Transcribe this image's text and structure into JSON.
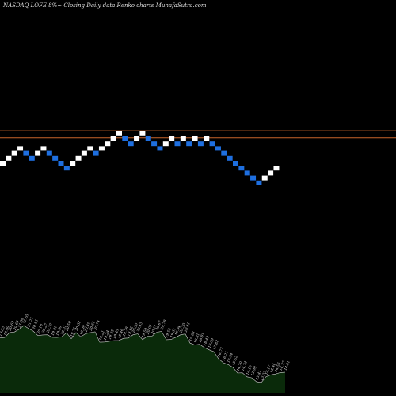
{
  "header": {
    "title": "NASDAQ LOFE 8%~  Closing Daily data  Renko  charts MunafaSutra.com"
  },
  "colors": {
    "background": "#000000",
    "up_brick": "#ffffff",
    "down_brick": "#1e6fe0",
    "resistance_line": "#c8642a",
    "volume_fill": "#0a2a0a",
    "volume_stroke": "#cfcfcf"
  },
  "chart_data": [
    {
      "type": "renko",
      "title": "NASDAQ LOFE 8%~  Closing Daily data  Renko  charts MunafaSutra.com",
      "bricks": [
        {
          "dir": "up",
          "level": 0
        },
        {
          "dir": "up",
          "level": 1
        },
        {
          "dir": "up",
          "level": 2
        },
        {
          "dir": "up",
          "level": 3
        },
        {
          "dir": "down",
          "level": 2
        },
        {
          "dir": "down",
          "level": 1
        },
        {
          "dir": "up",
          "level": 2
        },
        {
          "dir": "up",
          "level": 3
        },
        {
          "dir": "down",
          "level": 2
        },
        {
          "dir": "down",
          "level": 1
        },
        {
          "dir": "down",
          "level": 0
        },
        {
          "dir": "down",
          "level": -1
        },
        {
          "dir": "up",
          "level": 0
        },
        {
          "dir": "up",
          "level": 1
        },
        {
          "dir": "up",
          "level": 2
        },
        {
          "dir": "up",
          "level": 3
        },
        {
          "dir": "down",
          "level": 2
        },
        {
          "dir": "up",
          "level": 3
        },
        {
          "dir": "up",
          "level": 4
        },
        {
          "dir": "up",
          "level": 5
        },
        {
          "dir": "up",
          "level": 6
        },
        {
          "dir": "down",
          "level": 5
        },
        {
          "dir": "down",
          "level": 4
        },
        {
          "dir": "up",
          "level": 5
        },
        {
          "dir": "up",
          "level": 6
        },
        {
          "dir": "down",
          "level": 5
        },
        {
          "dir": "down",
          "level": 4
        },
        {
          "dir": "down",
          "level": 3
        },
        {
          "dir": "up",
          "level": 4
        },
        {
          "dir": "up",
          "level": 5
        },
        {
          "dir": "down",
          "level": 4
        },
        {
          "dir": "up",
          "level": 5
        },
        {
          "dir": "down",
          "level": 4
        },
        {
          "dir": "up",
          "level": 5
        },
        {
          "dir": "down",
          "level": 4
        },
        {
          "dir": "up",
          "level": 5
        },
        {
          "dir": "down",
          "level": 4
        },
        {
          "dir": "down",
          "level": 3
        },
        {
          "dir": "down",
          "level": 2
        },
        {
          "dir": "down",
          "level": 1
        },
        {
          "dir": "down",
          "level": 0
        },
        {
          "dir": "down",
          "level": -1
        },
        {
          "dir": "down",
          "level": -2
        },
        {
          "dir": "down",
          "level": -3
        },
        {
          "dir": "down",
          "level": -4
        },
        {
          "dir": "up",
          "level": -3
        },
        {
          "dir": "up",
          "level": -2
        },
        {
          "dir": "up",
          "level": -1
        }
      ],
      "resistance_levels": [
        6.6,
        5.2
      ]
    },
    {
      "type": "area",
      "series": [
        {
          "labels": [
            "19.83",
            "19.90",
            "20.62",
            "20.69",
            "21.08",
            "21.65",
            "21.21",
            "20.83",
            "20.18",
            "20.27",
            "20.30",
            "19.91",
            "19.90",
            "20.01",
            "20.59",
            "19.72",
            "20.62",
            "19.99",
            "20.45",
            "20.61",
            "20.74",
            "19.21",
            "19.24",
            "19.35",
            "19.45",
            "19.46",
            "19.78",
            "19.82",
            "20.30",
            "20.43",
            "19.59",
            "20.09",
            "20.11",
            "20.67",
            "20.79",
            "19.58",
            "19.61",
            "19.94",
            "20.30",
            "20.41",
            "19.08",
            "18.81",
            "18.91",
            "18.42",
            "18.09",
            "17.82",
            "16.77",
            "16.21",
            "15.94",
            "15.52",
            "14.70",
            "14.74",
            "14.15",
            "13.99",
            "13.41",
            "13.33",
            "14.17",
            "14.44",
            "14.56",
            "14.77",
            "14.81"
          ],
          "values": [
            19.83,
            19.9,
            20.62,
            20.69,
            21.08,
            21.65,
            21.21,
            20.83,
            20.18,
            20.27,
            20.3,
            19.91,
            19.9,
            20.01,
            20.59,
            19.72,
            20.62,
            19.99,
            20.45,
            20.61,
            20.74,
            19.21,
            19.24,
            19.35,
            19.45,
            19.46,
            19.78,
            19.82,
            20.3,
            20.43,
            19.59,
            20.09,
            20.11,
            20.67,
            20.79,
            19.58,
            19.61,
            19.94,
            20.3,
            20.41,
            19.08,
            18.81,
            18.91,
            18.42,
            18.09,
            17.82,
            16.77,
            16.21,
            15.94,
            15.52,
            14.7,
            14.74,
            14.15,
            13.99,
            13.41,
            13.33,
            14.17,
            14.44,
            14.56,
            14.77,
            14.81
          ]
        }
      ]
    }
  ]
}
